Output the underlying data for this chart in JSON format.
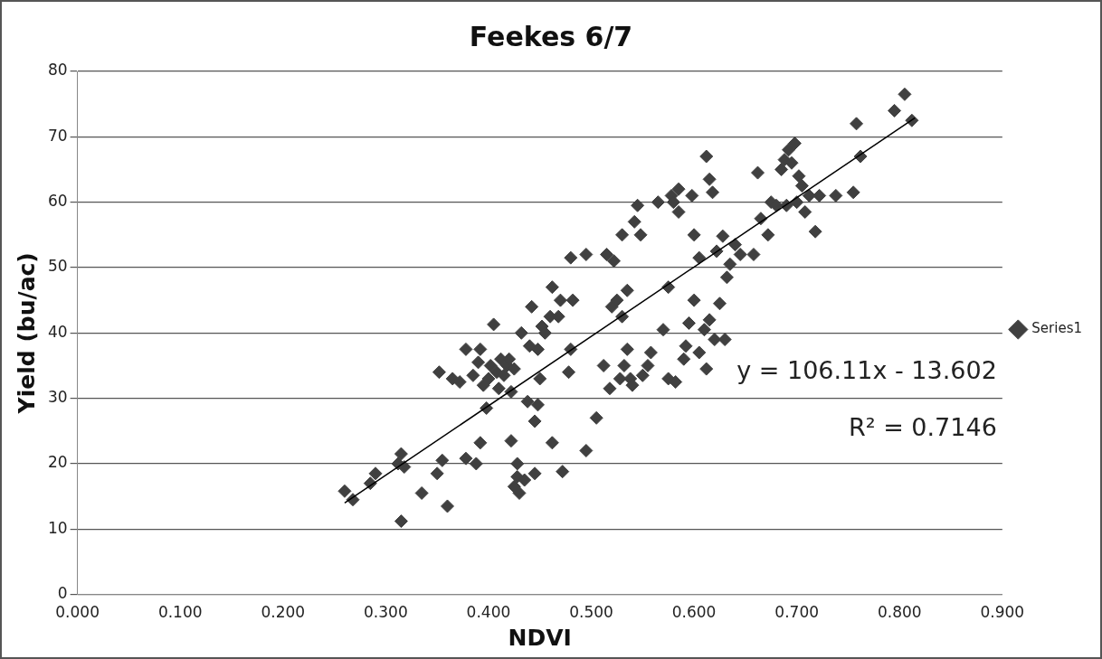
{
  "chart_data": {
    "type": "scatter",
    "title": "Feekes 6/7",
    "xlabel": "NDVI",
    "ylabel": "Yield (bu/ac)",
    "xlim": [
      0,
      0.9
    ],
    "xticks": [
      {
        "value": 0,
        "label": "0.000"
      },
      {
        "value": 0.1,
        "label": "0.100"
      },
      {
        "value": 0.2,
        "label": "0.200"
      },
      {
        "value": 0.3,
        "label": "0.300"
      },
      {
        "value": 0.4,
        "label": "0.400"
      },
      {
        "value": 0.5,
        "label": "0.500"
      },
      {
        "value": 0.6,
        "label": "0.600"
      },
      {
        "value": 0.7,
        "label": "0.700"
      },
      {
        "value": 0.8,
        "label": "0.800"
      },
      {
        "value": 0.9,
        "label": "0.900"
      }
    ],
    "ylim": [
      0,
      80
    ],
    "yticks": [
      0,
      10,
      20,
      30,
      40,
      50,
      60,
      70,
      80
    ],
    "grid": "y",
    "legend": "right",
    "marker": "diamond",
    "annotations": [
      "y = 106.11x - 13.602",
      "R² = 0.7146"
    ],
    "series": [
      {
        "name": "Series1",
        "color": "#404040",
        "x": [
          0.26,
          0.268,
          0.285,
          0.29,
          0.312,
          0.315,
          0.318,
          0.315,
          0.335,
          0.35,
          0.352,
          0.355,
          0.36,
          0.365,
          0.372,
          0.378,
          0.378,
          0.385,
          0.388,
          0.39,
          0.392,
          0.392,
          0.395,
          0.398,
          0.4,
          0.402,
          0.405,
          0.408,
          0.41,
          0.412,
          0.415,
          0.418,
          0.42,
          0.422,
          0.425,
          0.422,
          0.425,
          0.428,
          0.428,
          0.43,
          0.432,
          0.435,
          0.438,
          0.44,
          0.442,
          0.445,
          0.445,
          0.448,
          0.448,
          0.45,
          0.452,
          0.455,
          0.46,
          0.462,
          0.462,
          0.468,
          0.47,
          0.472,
          0.478,
          0.48,
          0.48,
          0.482,
          0.495,
          0.495,
          0.505,
          0.512,
          0.515,
          0.518,
          0.52,
          0.522,
          0.525,
          0.528,
          0.53,
          0.53,
          0.532,
          0.535,
          0.535,
          0.538,
          0.54,
          0.542,
          0.545,
          0.548,
          0.55,
          0.555,
          0.558,
          0.565,
          0.57,
          0.575,
          0.575,
          0.578,
          0.58,
          0.582,
          0.585,
          0.585,
          0.59,
          0.592,
          0.595,
          0.598,
          0.6,
          0.6,
          0.605,
          0.605,
          0.61,
          0.612,
          0.612,
          0.615,
          0.615,
          0.618,
          0.62,
          0.622,
          0.625,
          0.628,
          0.63,
          0.632,
          0.635,
          0.64,
          0.645,
          0.658,
          0.662,
          0.665,
          0.672,
          0.675,
          0.68,
          0.685,
          0.688,
          0.69,
          0.692,
          0.695,
          0.698,
          0.7,
          0.702,
          0.705,
          0.708,
          0.712,
          0.718,
          0.722,
          0.738,
          0.755,
          0.758,
          0.762,
          0.795,
          0.805,
          0.812
        ],
        "values": [
          15.8,
          14.5,
          17,
          18.5,
          20,
          21.5,
          19.5,
          11.2,
          15.5,
          18.5,
          34,
          20.5,
          13.5,
          33,
          32.5,
          37.5,
          20.8,
          33.5,
          20,
          35.5,
          37.5,
          23.2,
          32,
          28.5,
          33,
          35,
          41.3,
          34,
          31.5,
          36,
          33.5,
          35,
          36,
          23.5,
          34.5,
          31,
          16.5,
          18,
          20,
          15.5,
          40,
          17.5,
          29.5,
          38,
          44,
          18.5,
          26.5,
          37.5,
          29,
          33,
          41,
          40,
          42.5,
          23.2,
          47,
          42.5,
          45,
          18.8,
          34,
          37.5,
          51.5,
          45,
          52,
          22,
          27,
          35,
          52,
          31.5,
          44,
          51,
          45,
          33,
          55,
          42.5,
          35,
          37.5,
          46.5,
          33,
          32,
          57,
          59.5,
          55,
          33.5,
          35,
          37,
          60,
          40.5,
          47,
          33,
          61,
          60,
          32.5,
          58.5,
          62,
          36,
          38,
          41.5,
          61,
          55,
          45,
          37,
          51.5,
          40.5,
          67,
          34.5,
          42,
          63.5,
          61.5,
          39,
          52.5,
          44.5,
          54.8,
          39,
          48.5,
          50.5,
          53.5,
          52,
          52,
          64.5,
          57.5,
          55,
          60,
          59.5,
          65,
          66.5,
          59.5,
          68,
          66,
          69,
          60,
          64,
          62.5,
          58.5,
          61,
          55.5,
          61,
          61,
          61.5,
          72,
          67,
          74,
          76.5,
          72.5
        ]
      },
      {
        "type": "line",
        "color": "#000000",
        "marker": "none",
        "x": [
          0.26,
          0.815
        ],
        "values": [
          14.0,
          72.9
        ]
      }
    ]
  }
}
